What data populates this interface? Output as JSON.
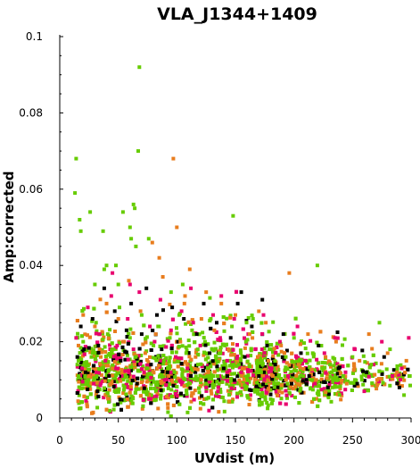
{
  "chart_data": {
    "type": "scatter",
    "title": "VLA_J1344+1409",
    "xlabel": "UVdist (m)",
    "ylabel": "Amp:corrected",
    "xlim": [
      0,
      300
    ],
    "ylim": [
      0,
      0.1
    ],
    "xticks": [
      "0",
      "50",
      "100",
      "150",
      "200",
      "250",
      "300"
    ],
    "yticks": [
      "0",
      "0.02",
      "0.04",
      "0.06",
      "0.08",
      "0.1"
    ],
    "grid": false,
    "series": [
      {
        "color": "#000000",
        "points": [
          [
            15,
            0.016
          ],
          [
            18,
            0.024
          ],
          [
            22,
            0.012
          ],
          [
            28,
            0.026
          ],
          [
            33,
            0.019
          ],
          [
            38,
            0.034
          ],
          [
            42,
            0.011
          ],
          [
            47,
            0.028
          ],
          [
            52,
            0.015
          ],
          [
            57,
            0.023
          ],
          [
            61,
            0.03
          ],
          [
            66,
            0.009
          ],
          [
            70,
            0.022
          ],
          [
            74,
            0.034
          ],
          [
            78,
            0.014
          ],
          [
            83,
            0.027
          ],
          [
            87,
            0.018
          ],
          [
            92,
            0.012
          ],
          [
            96,
            0.029
          ],
          [
            101,
            0.02
          ],
          [
            106,
            0.026
          ],
          [
            112,
            0.011
          ],
          [
            117,
            0.022
          ],
          [
            123,
            0.03
          ],
          [
            128,
            0.017
          ],
          [
            134,
            0.025
          ],
          [
            140,
            0.013
          ],
          [
            146,
            0.021
          ],
          [
            152,
            0.03
          ],
          [
            158,
            0.016
          ],
          [
            164,
            0.024
          ],
          [
            170,
            0.011
          ],
          [
            177,
            0.019
          ],
          [
            184,
            0.014
          ],
          [
            191,
            0.022
          ],
          [
            198,
            0.009
          ],
          [
            206,
            0.017
          ],
          [
            213,
            0.011
          ],
          [
            221,
            0.019
          ],
          [
            229,
            0.008
          ],
          [
            238,
            0.013
          ],
          [
            254,
            0.009
          ],
          [
            262,
            0.012
          ],
          [
            277,
            0.016
          ],
          [
            290,
            0.008
          ],
          [
            173,
            0.031
          ],
          [
            155,
            0.033
          ]
        ]
      },
      {
        "color": "#e8006e",
        "points": [
          [
            14,
            0.021
          ],
          [
            19,
            0.013
          ],
          [
            24,
            0.029
          ],
          [
            29,
            0.009
          ],
          [
            34,
            0.022
          ],
          [
            39,
            0.015
          ],
          [
            44,
            0.032
          ],
          [
            49,
            0.019
          ],
          [
            54,
            0.011
          ],
          [
            58,
            0.026
          ],
          [
            63,
            0.018
          ],
          [
            68,
            0.033
          ],
          [
            72,
            0.012
          ],
          [
            77,
            0.024
          ],
          [
            81,
            0.02
          ],
          [
            86,
            0.031
          ],
          [
            90,
            0.01
          ],
          [
            95,
            0.023
          ],
          [
            99,
            0.016
          ],
          [
            104,
            0.028
          ],
          [
            109,
            0.013
          ],
          [
            114,
            0.025
          ],
          [
            120,
            0.019
          ],
          [
            125,
            0.008
          ],
          [
            131,
            0.027
          ],
          [
            137,
            0.021
          ],
          [
            143,
            0.015
          ],
          [
            149,
            0.026
          ],
          [
            155,
            0.012
          ],
          [
            161,
            0.022
          ],
          [
            167,
            0.018
          ],
          [
            174,
            0.027
          ],
          [
            181,
            0.013
          ],
          [
            188,
            0.02
          ],
          [
            195,
            0.011
          ],
          [
            203,
            0.024
          ],
          [
            210,
            0.015
          ],
          [
            218,
            0.009
          ],
          [
            226,
            0.017
          ],
          [
            235,
            0.021
          ],
          [
            244,
            0.012
          ],
          [
            252,
            0.018
          ],
          [
            260,
            0.007
          ],
          [
            268,
            0.014
          ],
          [
            275,
            0.02
          ],
          [
            284,
            0.011
          ],
          [
            292,
            0.013
          ],
          [
            298,
            0.021
          ],
          [
            60,
            0.035
          ],
          [
            112,
            0.034
          ],
          [
            138,
            0.032
          ],
          [
            45,
            0.038
          ]
        ]
      },
      {
        "color": "#e87d1e",
        "points": [
          [
            16,
            0.019
          ],
          [
            20,
            0.027
          ],
          [
            25,
            0.011
          ],
          [
            30,
            0.024
          ],
          [
            35,
            0.016
          ],
          [
            40,
            0.03
          ],
          [
            45,
            0.013
          ],
          [
            50,
            0.026
          ],
          [
            55,
            0.02
          ],
          [
            59,
            0.036
          ],
          [
            64,
            0.014
          ],
          [
            69,
            0.028
          ],
          [
            73,
            0.017
          ],
          [
            79,
            0.046
          ],
          [
            82,
            0.022
          ],
          [
            88,
            0.037
          ],
          [
            93,
            0.011
          ],
          [
            97,
            0.068
          ],
          [
            100,
            0.05
          ],
          [
            103,
            0.02
          ],
          [
            107,
            0.032
          ],
          [
            111,
            0.039
          ],
          [
            116,
            0.016
          ],
          [
            121,
            0.026
          ],
          [
            127,
            0.012
          ],
          [
            132,
            0.023
          ],
          [
            138,
            0.03
          ],
          [
            144,
            0.018
          ],
          [
            150,
            0.027
          ],
          [
            156,
            0.013
          ],
          [
            162,
            0.022
          ],
          [
            169,
            0.016
          ],
          [
            176,
            0.025
          ],
          [
            182,
            0.011
          ],
          [
            189,
            0.019
          ],
          [
            196,
            0.038
          ],
          [
            204,
            0.014
          ],
          [
            212,
            0.022
          ],
          [
            219,
            0.01
          ],
          [
            227,
            0.016
          ],
          [
            236,
            0.02
          ],
          [
            245,
            0.009
          ],
          [
            256,
            0.015
          ],
          [
            264,
            0.022
          ],
          [
            271,
            0.01
          ],
          [
            280,
            0.017
          ],
          [
            288,
            0.012
          ],
          [
            296,
            0.015
          ],
          [
            85,
            0.042
          ],
          [
            125,
            0.033
          ]
        ]
      },
      {
        "color": "#66cc00",
        "points": [
          [
            14,
            0.068
          ],
          [
            13,
            0.059
          ],
          [
            17,
            0.052
          ],
          [
            18,
            0.049
          ],
          [
            26,
            0.054
          ],
          [
            37,
            0.049
          ],
          [
            54,
            0.054
          ],
          [
            63,
            0.056
          ],
          [
            64,
            0.055
          ],
          [
            65,
            0.045
          ],
          [
            67,
            0.07
          ],
          [
            68,
            0.092
          ],
          [
            60,
            0.05
          ],
          [
            61,
            0.047
          ],
          [
            76,
            0.047
          ],
          [
            148,
            0.053
          ],
          [
            40,
            0.04
          ],
          [
            38,
            0.039
          ],
          [
            48,
            0.04
          ],
          [
            30,
            0.035
          ],
          [
            50,
            0.035
          ],
          [
            95,
            0.033
          ],
          [
            105,
            0.035
          ],
          [
            220,
            0.04
          ],
          [
            15,
            0.014
          ],
          [
            20,
            0.02
          ],
          [
            24,
            0.009
          ],
          [
            27,
            0.016
          ],
          [
            31,
            0.025
          ],
          [
            36,
            0.013
          ],
          [
            41,
            0.022
          ],
          [
            46,
            0.018
          ],
          [
            51,
            0.029
          ],
          [
            56,
            0.011
          ],
          [
            60,
            0.021
          ],
          [
            65,
            0.016
          ],
          [
            70,
            0.027
          ],
          [
            75,
            0.013
          ],
          [
            80,
            0.019
          ],
          [
            84,
            0.024
          ],
          [
            89,
            0.015
          ],
          [
            94,
            0.021
          ],
          [
            98,
            0.012
          ],
          [
            102,
            0.027
          ],
          [
            108,
            0.017
          ],
          [
            113,
            0.023
          ],
          [
            118,
            0.014
          ],
          [
            124,
            0.02
          ],
          [
            129,
            0.026
          ],
          [
            135,
            0.011
          ],
          [
            141,
            0.019
          ],
          [
            147,
            0.024
          ],
          [
            153,
            0.014
          ],
          [
            159,
            0.02
          ],
          [
            165,
            0.026
          ],
          [
            172,
            0.012
          ],
          [
            179,
            0.018
          ],
          [
            186,
            0.009
          ],
          [
            193,
            0.016
          ],
          [
            200,
            0.021
          ],
          [
            208,
            0.011
          ],
          [
            216,
            0.017
          ],
          [
            224,
            0.013
          ],
          [
            233,
            0.008
          ],
          [
            242,
            0.011
          ],
          [
            250,
            0.016
          ],
          [
            258,
            0.01
          ],
          [
            266,
            0.014
          ],
          [
            273,
            0.025
          ],
          [
            282,
            0.018
          ],
          [
            294,
            0.006
          ],
          [
            299,
            0.011
          ]
        ]
      }
    ],
    "cloud": {
      "x_range": [
        13,
        300
      ],
      "center_amp": 0.011,
      "core_spread": 0.004,
      "upper_tail": 0.016,
      "colors": [
        "#66cc00",
        "#e87d1e",
        "#e8006e",
        "#000000"
      ],
      "weights": [
        0.5,
        0.25,
        0.15,
        0.1
      ]
    }
  }
}
